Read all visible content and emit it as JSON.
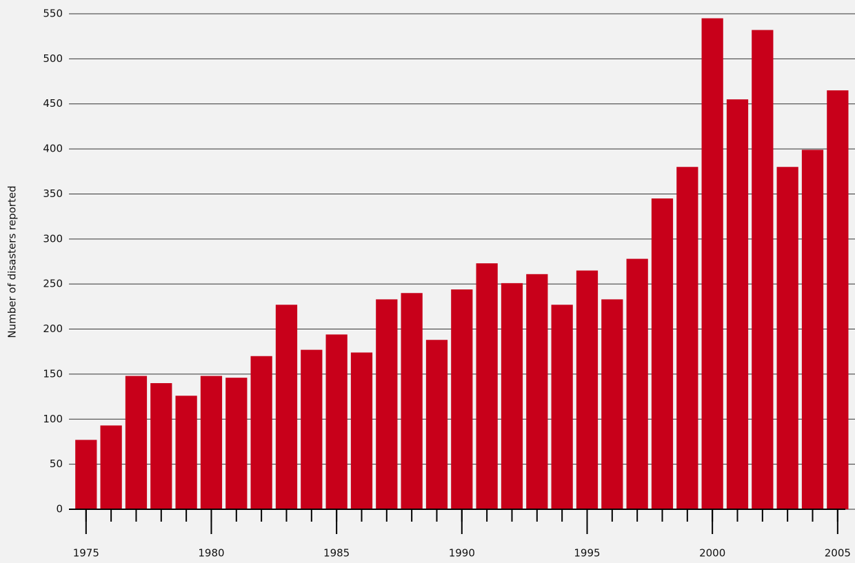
{
  "chart_data": {
    "type": "bar",
    "y_label": "Number of disasters reported",
    "x": [
      1975,
      1976,
      1977,
      1978,
      1979,
      1980,
      1981,
      1982,
      1983,
      1984,
      1985,
      1986,
      1987,
      1988,
      1989,
      1990,
      1991,
      1992,
      1993,
      1994,
      1995,
      1996,
      1997,
      1998,
      1999,
      2000,
      2001,
      2002,
      2003,
      2004,
      2005
    ],
    "values": [
      77,
      93,
      148,
      140,
      126,
      148,
      146,
      170,
      227,
      177,
      194,
      174,
      233,
      240,
      188,
      244,
      273,
      251,
      261,
      227,
      265,
      233,
      278,
      345,
      380,
      545,
      455,
      532,
      380,
      399,
      465
    ],
    "color": "#c8001a",
    "xlim": [
      1974.4,
      2005.5
    ],
    "xticks": [
      1975,
      1980,
      1985,
      1990,
      1995,
      2000,
      2005
    ],
    "ylim": [
      0,
      550
    ],
    "yticks": [
      0,
      50,
      100,
      150,
      200,
      250,
      300,
      350,
      400,
      450,
      500,
      550
    ],
    "grid": true
  }
}
